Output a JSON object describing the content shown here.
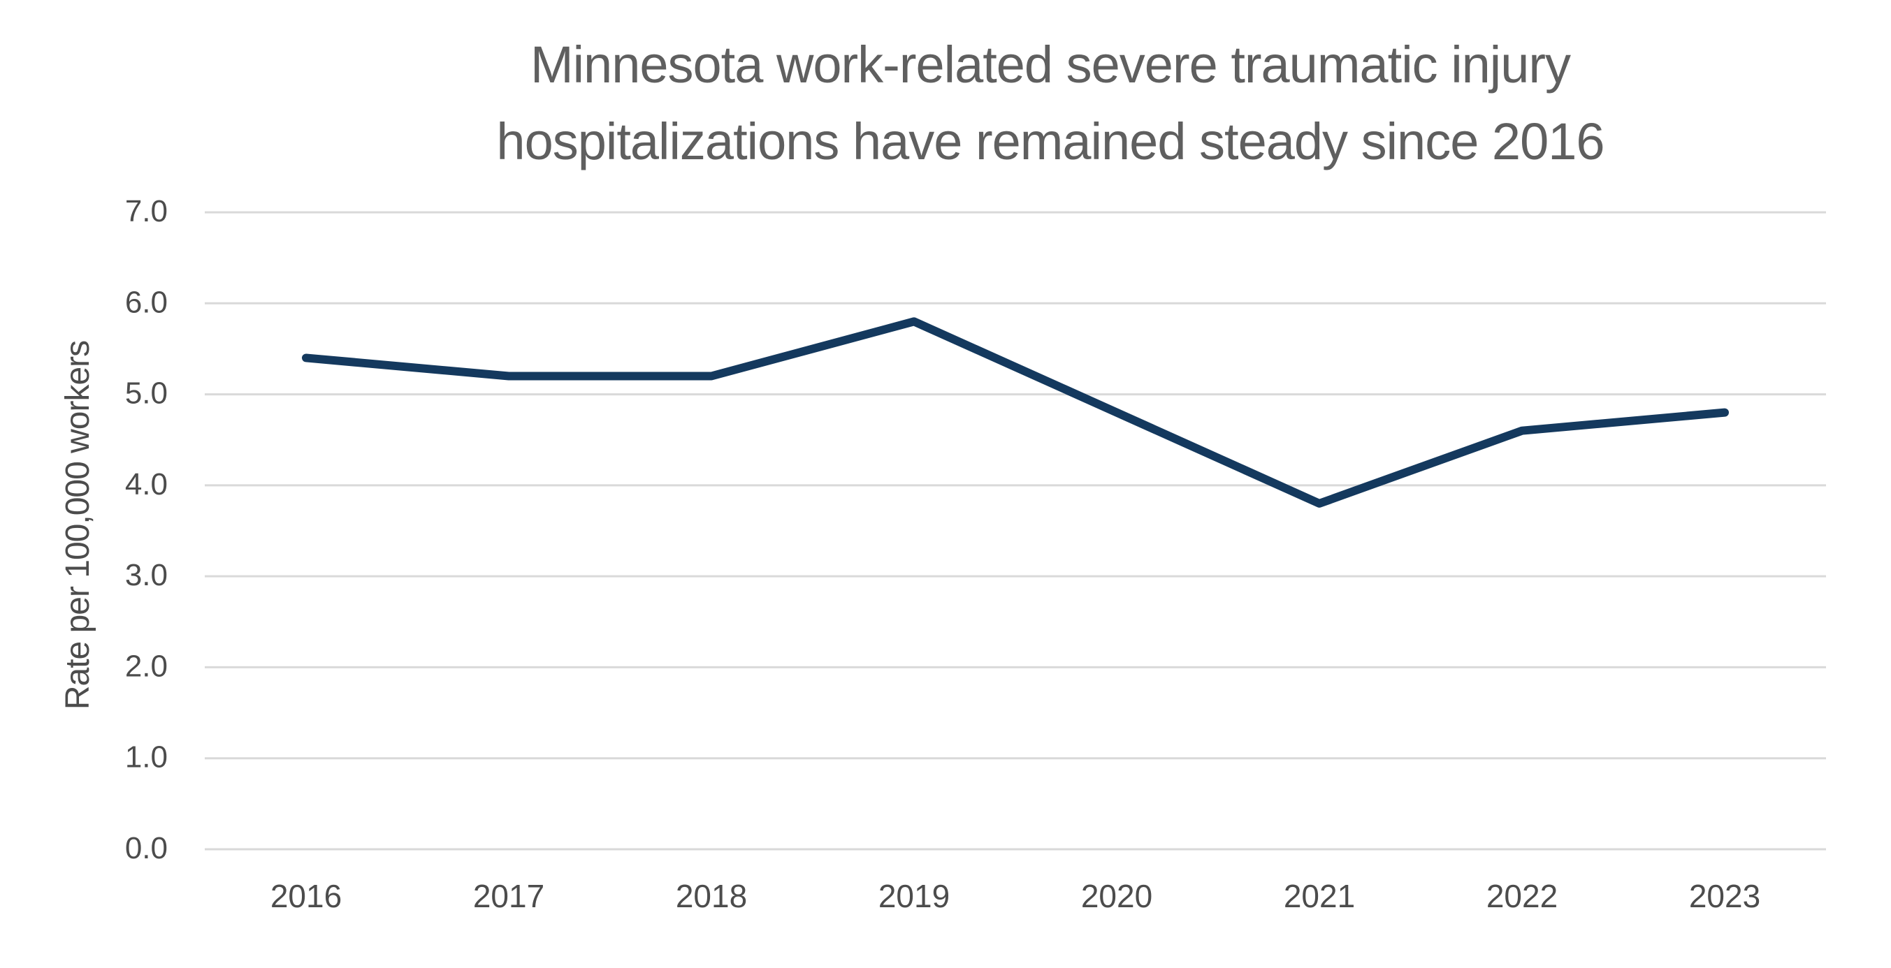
{
  "chart_data": {
    "type": "line",
    "title": "Minnesota work-related severe traumatic injury hospitalizations have remained steady since 2016",
    "title_lines": [
      "Minnesota work-related severe traumatic injury",
      "hospitalizations have remained steady since 2016"
    ],
    "ylabel": "Rate per 100,000 workers",
    "xlabel": "",
    "categories": [
      "2016",
      "2017",
      "2018",
      "2019",
      "2020",
      "2021",
      "2022",
      "2023"
    ],
    "values": [
      5.4,
      5.2,
      5.2,
      5.8,
      4.8,
      3.8,
      4.6,
      4.8
    ],
    "series_name": "Rate per 100,000 workers",
    "ylim": [
      0.0,
      7.0
    ],
    "ytick_step": 1.0,
    "ytick_labels": [
      "0.0",
      "1.0",
      "2.0",
      "3.0",
      "4.0",
      "5.0",
      "6.0",
      "7.0"
    ],
    "grid": true,
    "legend": "none",
    "colors": {
      "line": "#14395E",
      "gridline": "#D9D9D9",
      "title_text": "#5F5F5F",
      "tick_text": "#4C4C4C"
    }
  }
}
